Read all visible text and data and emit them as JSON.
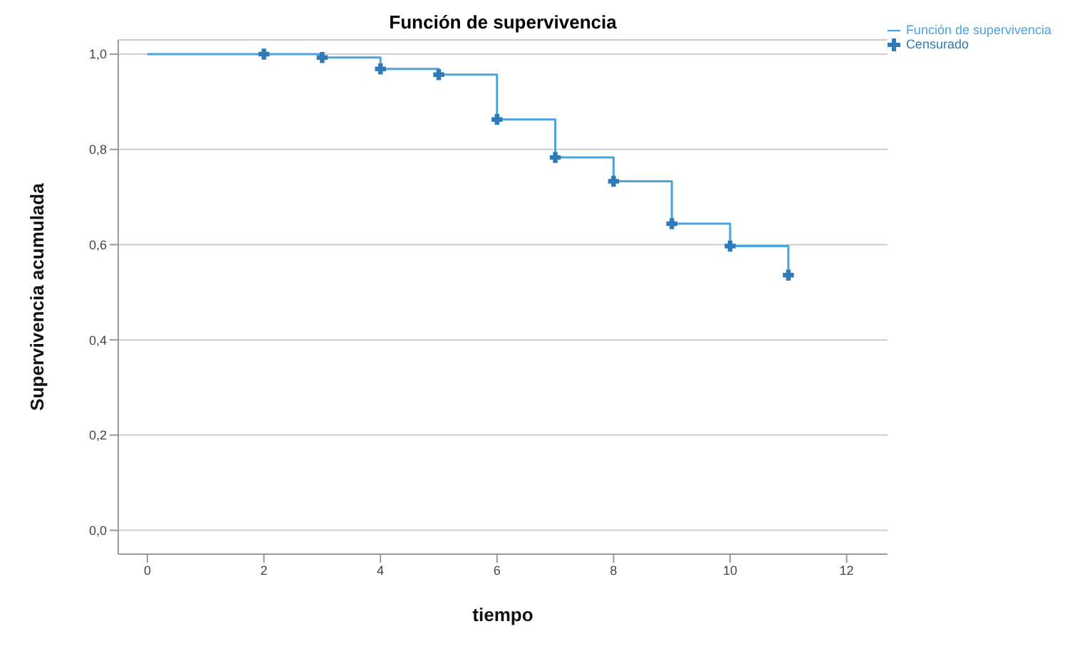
{
  "chart_data": {
    "type": "step",
    "title": "Función de supervivencia",
    "xlabel": "tiempo",
    "ylabel": "Supervivencia acumulada",
    "series": [
      {
        "name": "Función de supervivencia",
        "color": "#4aa3df",
        "x": [
          0,
          2,
          3,
          4,
          5,
          6,
          7,
          8,
          9,
          10,
          11
        ],
        "values": [
          1,
          1,
          0.993,
          0.969,
          0.957,
          0.863,
          0.783,
          0.733,
          0.644,
          0.597,
          0.536
        ],
        "marker": "none"
      },
      {
        "name": "Censurado",
        "type": "scatter",
        "color": "#2f7ab8",
        "x": [
          2,
          3,
          4,
          5,
          6,
          7,
          8,
          9,
          10,
          11
        ],
        "values": [
          1,
          0.993,
          0.969,
          0.957,
          0.863,
          0.783,
          0.733,
          0.644,
          0.597,
          0.536
        ],
        "marker": "cross"
      }
    ],
    "xlim": [
      -0.5,
      12.7
    ],
    "xticks": [
      0,
      2,
      4,
      6,
      8,
      10,
      12
    ],
    "ylim": [
      -0.05,
      1.03
    ],
    "yticks": [
      {
        "value": 0,
        "label": "0,0"
      },
      {
        "value": 0.2,
        "label": "0,2"
      },
      {
        "value": 0.4,
        "label": "0,4"
      },
      {
        "value": 0.6,
        "label": "0,6"
      },
      {
        "value": 0.8,
        "label": "0,8"
      },
      {
        "value": 1,
        "label": "1,0"
      }
    ],
    "grid": "y",
    "legend": "top right"
  }
}
